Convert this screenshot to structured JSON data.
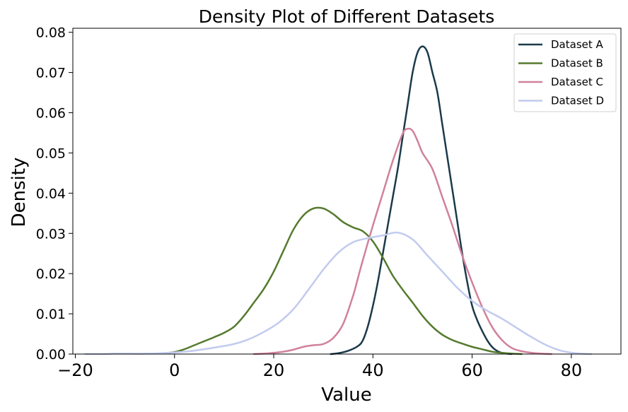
{
  "chart_data": {
    "type": "line",
    "title": "Density Plot of Different Datasets",
    "xlabel": "Value",
    "ylabel": "Density",
    "xlim": [
      -20.5,
      90
    ],
    "ylim": [
      0,
      0.081
    ],
    "xticks": [
      -20,
      0,
      20,
      40,
      60,
      80
    ],
    "xtick_labels": [
      "−20",
      "0",
      "20",
      "40",
      "60",
      "80"
    ],
    "yticks": [
      0.0,
      0.01,
      0.02,
      0.03,
      0.04,
      0.05,
      0.06,
      0.07,
      0.08
    ],
    "ytick_labels": [
      "0.00",
      "0.01",
      "0.02",
      "0.03",
      "0.04",
      "0.05",
      "0.06",
      "0.07",
      "0.08"
    ],
    "grid": false,
    "legend_position": "top-right",
    "series": [
      {
        "name": "Dataset A",
        "color": "#1b3a4b",
        "x": [
          31.5,
          33,
          35,
          37,
          38,
          39,
          40,
          41,
          42,
          43,
          44,
          45,
          46,
          47,
          48,
          49,
          50,
          51,
          52,
          53,
          54,
          55,
          56,
          57,
          58,
          59,
          60,
          61,
          62,
          63,
          64,
          65,
          66,
          67,
          68
        ],
        "y": [
          0.0,
          0.0002,
          0.0008,
          0.002,
          0.0035,
          0.007,
          0.012,
          0.018,
          0.025,
          0.032,
          0.039,
          0.046,
          0.054,
          0.062,
          0.07,
          0.075,
          0.0765,
          0.075,
          0.07,
          0.065,
          0.057,
          0.049,
          0.041,
          0.033,
          0.025,
          0.018,
          0.012,
          0.0085,
          0.0058,
          0.0035,
          0.0018,
          0.0008,
          0.0003,
          0.0001,
          0.0
        ]
      },
      {
        "name": "Dataset B",
        "color": "#557a2e",
        "x": [
          -2,
          0,
          2,
          4,
          6,
          8,
          10,
          12,
          14,
          16,
          18,
          20,
          22,
          24,
          26,
          28,
          30,
          32,
          34,
          36,
          38,
          40,
          42,
          44,
          46,
          48,
          50,
          52,
          54,
          56,
          58,
          60,
          62,
          64,
          66,
          68,
          70
        ],
        "y": [
          0.0002,
          0.0005,
          0.0012,
          0.0022,
          0.0032,
          0.0042,
          0.0053,
          0.0068,
          0.0095,
          0.0128,
          0.0162,
          0.0205,
          0.0258,
          0.031,
          0.0345,
          0.0362,
          0.0362,
          0.0348,
          0.0328,
          0.0315,
          0.0305,
          0.028,
          0.024,
          0.0195,
          0.016,
          0.0128,
          0.0095,
          0.0068,
          0.0048,
          0.0035,
          0.0026,
          0.0018,
          0.0012,
          0.0006,
          0.0003,
          0.0001,
          0.0
        ]
      },
      {
        "name": "Dataset C",
        "color": "#d0819b",
        "x": [
          16,
          18,
          20,
          22,
          24,
          26,
          28,
          30,
          32,
          34,
          36,
          37,
          38,
          40,
          42,
          44,
          46,
          47,
          48,
          49,
          50,
          52,
          54,
          56,
          58,
          60,
          62,
          64,
          66,
          68,
          70,
          72,
          74,
          76
        ],
        "y": [
          0.0,
          0.0001,
          0.0003,
          0.0006,
          0.0011,
          0.0018,
          0.0022,
          0.0025,
          0.004,
          0.0075,
          0.0145,
          0.019,
          0.0235,
          0.032,
          0.04,
          0.048,
          0.0548,
          0.056,
          0.0555,
          0.053,
          0.05,
          0.046,
          0.039,
          0.032,
          0.0245,
          0.0178,
          0.0118,
          0.0068,
          0.0035,
          0.0015,
          0.0007,
          0.0003,
          0.0001,
          0.0
        ]
      },
      {
        "name": "Dataset D",
        "color": "#c2cbee",
        "x": [
          -18,
          -15,
          -12,
          -9,
          -6,
          -3,
          0,
          3,
          6,
          9,
          12,
          15,
          18,
          21,
          24,
          27,
          30,
          33,
          36,
          39,
          42,
          45,
          48,
          51,
          54,
          57,
          60,
          63,
          66,
          69,
          72,
          75,
          78,
          81,
          84
        ],
        "y": [
          0.0,
          0.0,
          0.0001,
          0.0001,
          0.0001,
          0.0002,
          0.0004,
          0.0007,
          0.0012,
          0.0018,
          0.0025,
          0.0037,
          0.0055,
          0.0078,
          0.0112,
          0.016,
          0.021,
          0.0252,
          0.0278,
          0.0288,
          0.0295,
          0.0302,
          0.0285,
          0.0245,
          0.0205,
          0.0165,
          0.0132,
          0.0108,
          0.0088,
          0.0065,
          0.0042,
          0.0022,
          0.0008,
          0.0002,
          0.0
        ]
      }
    ]
  }
}
